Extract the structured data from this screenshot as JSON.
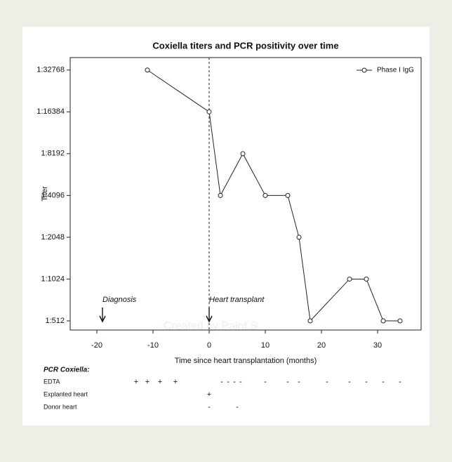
{
  "chart_data": {
    "type": "line",
    "title": "Coxiella titers and PCR positivity over time",
    "xlabel": "Time since heart transplantation (months)",
    "ylabel": "Titer",
    "ylog": true,
    "legend": "top-right",
    "xlim": [
      -24.75,
      37.75
    ],
    "xticks": [
      -20,
      -10,
      0,
      10,
      20,
      30
    ],
    "ylim": [
      440,
      40300
    ],
    "yticks": [
      {
        "value": 512,
        "label": "1:512"
      },
      {
        "value": 1024,
        "label": "1:1024"
      },
      {
        "value": 2048,
        "label": "1:2048"
      },
      {
        "value": 4096,
        "label": "1:4096"
      },
      {
        "value": 8192,
        "label": "1:8192"
      },
      {
        "value": 16384,
        "label": "1:16384"
      },
      {
        "value": 32768,
        "label": "1:32768"
      }
    ],
    "vline": 0,
    "series": [
      {
        "name": "Phase I IgG",
        "color": "#222222",
        "x": [
          -11,
          0,
          2,
          6,
          10,
          14,
          16,
          18,
          25,
          28,
          31,
          34
        ],
        "values": [
          32768,
          16384,
          4096,
          8192,
          4096,
          4096,
          2048,
          512,
          1024,
          1024,
          512,
          512
        ]
      }
    ],
    "annotations": [
      {
        "text": "Diagnosis",
        "x": -19
      },
      {
        "text": "Heart transplant",
        "x": 0
      }
    ],
    "watermark": "Created by Paint S",
    "pcr": {
      "title": "PCR Coxiella:",
      "rows": [
        {
          "name": "EDTA",
          "x": [
            -13,
            -11,
            -8.75,
            -6,
            2.25,
            3.4,
            4.5,
            5.6,
            10,
            14,
            16,
            21,
            25,
            28,
            31,
            34
          ],
          "labels": [
            "+",
            "+",
            "+",
            "+",
            "-",
            "-",
            "-",
            "-",
            "-",
            "-",
            "-",
            "-",
            "-",
            "-",
            "-",
            "-"
          ]
        },
        {
          "name": "Explanted heart",
          "x": [
            0
          ],
          "labels": [
            "+"
          ]
        },
        {
          "name": "Donor heart",
          "x": [
            0,
            5
          ],
          "labels": [
            "-",
            "-"
          ]
        }
      ]
    }
  }
}
